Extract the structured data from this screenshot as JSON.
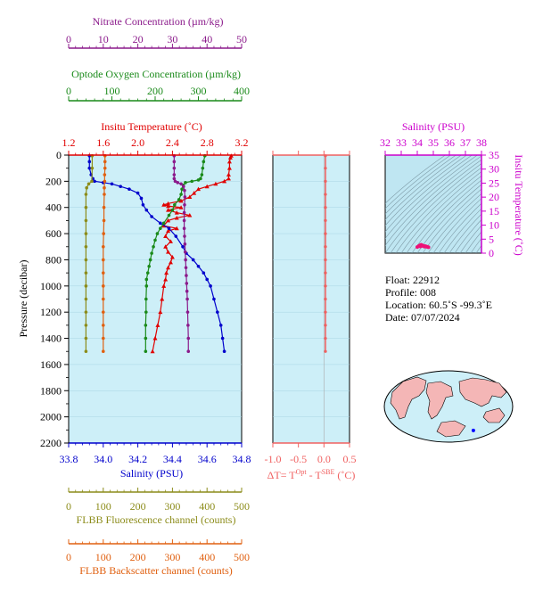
{
  "axes": {
    "nitrate": {
      "label": "Nitrate Concentration (µm/kg)",
      "color": "#8b1a8b",
      "range": [
        0,
        50
      ],
      "ticks": [
        "0",
        "10",
        "20",
        "30",
        "40",
        "50"
      ]
    },
    "oxygen": {
      "label": "Optode Oxygen Concentration (µm/kg)",
      "color": "#1a8a1a",
      "range": [
        0,
        400
      ],
      "ticks": [
        "0",
        "100",
        "200",
        "300",
        "400"
      ]
    },
    "temperature": {
      "label": "Insitu Temperature (˚C)",
      "color": "#e00000",
      "range": [
        1.2,
        3.2
      ],
      "ticks": [
        "1.2",
        "1.6",
        "2.0",
        "2.4",
        "2.8",
        "3.2"
      ]
    },
    "pressure": {
      "label": "Pressure (decibar)",
      "color": "#000000",
      "range": [
        0,
        2200
      ],
      "ticks": [
        "0",
        "200",
        "400",
        "600",
        "800",
        "1000",
        "1200",
        "1400",
        "1600",
        "1800",
        "2000",
        "2200"
      ]
    },
    "salinity": {
      "label": "Salinity (PSU)",
      "color": "#0000cc",
      "range": [
        33.8,
        34.8
      ],
      "ticks": [
        "33.8",
        "34.0",
        "34.2",
        "34.4",
        "34.6",
        "34.8"
      ]
    },
    "fluorescence": {
      "label": "FLBB Fluorescence channel (counts)",
      "color": "#8c8c1a",
      "range": [
        0,
        500
      ],
      "ticks": [
        "0",
        "100",
        "200",
        "300",
        "400",
        "500"
      ]
    },
    "backscatter": {
      "label": "FLBB Backscatter channel (counts)",
      "color": "#e06010",
      "range": [
        0,
        500
      ],
      "ticks": [
        "0",
        "100",
        "200",
        "300",
        "400",
        "500"
      ]
    },
    "delta_t": {
      "label_prefix": "ΔT= T",
      "sup1": "Opt",
      "label_mid": " - T",
      "sup2": "SBE",
      "label_suffix": " (˚C)",
      "color": "#f06060",
      "range": [
        -1.0,
        0.5
      ],
      "ticks": [
        "-1.0",
        "-0.5",
        "0.0",
        "0.5"
      ]
    },
    "ts_salinity": {
      "label": "Salinity (PSU)",
      "color": "#cc00cc",
      "range": [
        32,
        38
      ],
      "ticks": [
        "32",
        "33",
        "34",
        "35",
        "36",
        "37",
        "38"
      ]
    },
    "ts_temperature": {
      "label": "Insitu Temperature (˚C)",
      "color": "#cc00cc",
      "range": [
        0,
        35
      ],
      "ticks": [
        "0",
        "5",
        "10",
        "15",
        "20",
        "25",
        "30",
        "35"
      ]
    }
  },
  "info": {
    "float": "Float:  22912",
    "profile": "Profile:  008",
    "location": "Location:  60.5˚S  -99.3˚E",
    "date": "Date:  07/07/2024"
  },
  "colors": {
    "panel_bg": "#cdeff8",
    "ts_bg": "#bfe6f2"
  },
  "chart_data": {
    "type": "line",
    "y_axis": "pressure",
    "series": [
      {
        "axis": "temperature",
        "color": "#e00000",
        "marker": "triangle",
        "points": [
          [
            3.08,
            5
          ],
          [
            3.07,
            20
          ],
          [
            3.06,
            50
          ],
          [
            3.06,
            100
          ],
          [
            3.05,
            150
          ],
          [
            3.05,
            180
          ],
          [
            3.0,
            200
          ],
          [
            2.9,
            220
          ],
          [
            2.8,
            240
          ],
          [
            2.7,
            260
          ],
          [
            2.65,
            290
          ],
          [
            2.6,
            320
          ],
          [
            2.5,
            350
          ],
          [
            2.35,
            370
          ],
          [
            2.3,
            380
          ],
          [
            2.35,
            390
          ],
          [
            2.5,
            400
          ],
          [
            2.35,
            420
          ],
          [
            2.45,
            440
          ],
          [
            2.6,
            460
          ],
          [
            2.45,
            480
          ],
          [
            2.35,
            500
          ],
          [
            2.3,
            540
          ],
          [
            2.45,
            560
          ],
          [
            2.35,
            580
          ],
          [
            2.32,
            620
          ],
          [
            2.38,
            660
          ],
          [
            2.32,
            700
          ],
          [
            2.35,
            740
          ],
          [
            2.4,
            780
          ],
          [
            2.38,
            820
          ],
          [
            2.35,
            860
          ],
          [
            2.33,
            900
          ],
          [
            2.32,
            950
          ],
          [
            2.3,
            1000
          ],
          [
            2.28,
            1100
          ],
          [
            2.26,
            1200
          ],
          [
            2.23,
            1300
          ],
          [
            2.2,
            1400
          ],
          [
            2.17,
            1500
          ]
        ]
      },
      {
        "axis": "salinity",
        "color": "#0000cc",
        "marker": "circle",
        "points": [
          [
            33.92,
            5
          ],
          [
            33.92,
            50
          ],
          [
            33.92,
            100
          ],
          [
            33.93,
            150
          ],
          [
            33.94,
            180
          ],
          [
            33.95,
            200
          ],
          [
            34.0,
            210
          ],
          [
            34.05,
            220
          ],
          [
            34.1,
            240
          ],
          [
            34.15,
            260
          ],
          [
            34.2,
            290
          ],
          [
            34.22,
            330
          ],
          [
            34.23,
            380
          ],
          [
            34.25,
            420
          ],
          [
            34.28,
            470
          ],
          [
            34.33,
            520
          ],
          [
            34.38,
            560
          ],
          [
            34.42,
            620
          ],
          [
            34.46,
            700
          ],
          [
            34.48,
            750
          ],
          [
            34.52,
            800
          ],
          [
            34.55,
            850
          ],
          [
            34.58,
            900
          ],
          [
            34.6,
            950
          ],
          [
            34.62,
            1000
          ],
          [
            34.64,
            1100
          ],
          [
            34.66,
            1200
          ],
          [
            34.68,
            1300
          ],
          [
            34.69,
            1400
          ],
          [
            34.7,
            1500
          ]
        ]
      },
      {
        "axis": "oxygen",
        "color": "#1a8a1a",
        "marker": "circle",
        "points": [
          [
            315,
            5
          ],
          [
            312,
            50
          ],
          [
            310,
            100
          ],
          [
            308,
            150
          ],
          [
            305,
            180
          ],
          [
            300,
            190
          ],
          [
            285,
            200
          ],
          [
            270,
            210
          ],
          [
            265,
            230
          ],
          [
            262,
            260
          ],
          [
            260,
            300
          ],
          [
            255,
            340
          ],
          [
            245,
            380
          ],
          [
            240,
            420
          ],
          [
            232,
            460
          ],
          [
            220,
            520
          ],
          [
            212,
            560
          ],
          [
            205,
            600
          ],
          [
            200,
            650
          ],
          [
            196,
            700
          ],
          [
            192,
            750
          ],
          [
            189,
            800
          ],
          [
            186,
            850
          ],
          [
            183,
            900
          ],
          [
            180,
            950
          ],
          [
            180,
            1000
          ],
          [
            179,
            1100
          ],
          [
            179,
            1200
          ],
          [
            178,
            1300
          ],
          [
            178,
            1400
          ],
          [
            178,
            1500
          ]
        ]
      },
      {
        "axis": "nitrate",
        "color": "#8b1a8b",
        "marker": "circle",
        "points": [
          [
            30.5,
            5
          ],
          [
            30.5,
            50
          ],
          [
            30.5,
            100
          ],
          [
            30.5,
            150
          ],
          [
            30.5,
            180
          ],
          [
            30.8,
            200
          ],
          [
            31.5,
            210
          ],
          [
            32.5,
            220
          ],
          [
            33.2,
            240
          ],
          [
            33.5,
            270
          ],
          [
            33.6,
            320
          ],
          [
            33.5,
            380
          ],
          [
            33.4,
            440
          ],
          [
            33.4,
            500
          ],
          [
            33.4,
            560
          ],
          [
            33.5,
            620
          ],
          [
            33.6,
            680
          ],
          [
            33.7,
            740
          ],
          [
            33.8,
            800
          ],
          [
            33.9,
            860
          ],
          [
            34.0,
            920
          ],
          [
            34.1,
            980
          ],
          [
            34.2,
            1040
          ],
          [
            34.3,
            1100
          ],
          [
            34.4,
            1200
          ],
          [
            34.5,
            1300
          ],
          [
            34.6,
            1400
          ],
          [
            34.6,
            1500
          ]
        ]
      },
      {
        "axis": "fluorescence",
        "color": "#8c8c1a",
        "marker": "circle",
        "points": [
          [
            68,
            5
          ],
          [
            68,
            100
          ],
          [
            67,
            200
          ],
          [
            58,
            220
          ],
          [
            52,
            250
          ],
          [
            50,
            300
          ],
          [
            50,
            400
          ],
          [
            50,
            500
          ],
          [
            50,
            600
          ],
          [
            50,
            700
          ],
          [
            50,
            800
          ],
          [
            50,
            900
          ],
          [
            50,
            1000
          ],
          [
            50,
            1100
          ],
          [
            50,
            1200
          ],
          [
            50,
            1300
          ],
          [
            50,
            1400
          ],
          [
            50,
            1500
          ]
        ]
      },
      {
        "axis": "backscatter",
        "color": "#e06010",
        "marker": "circle",
        "points": [
          [
            105,
            5
          ],
          [
            105,
            50
          ],
          [
            105,
            100
          ],
          [
            104,
            150
          ],
          [
            104,
            200
          ],
          [
            103,
            250
          ],
          [
            103,
            300
          ],
          [
            102,
            400
          ],
          [
            102,
            500
          ],
          [
            101,
            600
          ],
          [
            100,
            700
          ],
          [
            100,
            800
          ],
          [
            100,
            900
          ],
          [
            100,
            1000
          ],
          [
            100,
            1100
          ],
          [
            100,
            1200
          ],
          [
            100,
            1300
          ],
          [
            100,
            1400
          ],
          [
            100,
            1500
          ]
        ]
      }
    ],
    "delta_t_series": {
      "color": "#f06060",
      "points": [
        [
          0.03,
          5
        ],
        [
          0.03,
          100
        ],
        [
          0.03,
          200
        ],
        [
          0.03,
          300
        ],
        [
          0.03,
          400
        ],
        [
          0.03,
          500
        ],
        [
          0.03,
          600
        ],
        [
          0.03,
          700
        ],
        [
          0.03,
          800
        ],
        [
          0.03,
          900
        ],
        [
          0.03,
          1000
        ],
        [
          0.03,
          1100
        ],
        [
          0.03,
          1200
        ],
        [
          0.03,
          1300
        ],
        [
          0.03,
          1400
        ],
        [
          0.03,
          1500
        ]
      ]
    },
    "ts_series": {
      "color": "#ee1177",
      "points": [
        [
          34.0,
          2.2
        ],
        [
          34.1,
          2.6
        ],
        [
          34.2,
          2.9
        ],
        [
          34.25,
          3.0
        ],
        [
          34.3,
          2.8
        ],
        [
          34.4,
          2.6
        ],
        [
          34.5,
          2.5
        ],
        [
          34.55,
          2.4
        ],
        [
          34.6,
          2.3
        ],
        [
          34.65,
          2.2
        ],
        [
          34.7,
          2.1
        ],
        [
          34.2,
          2.4
        ],
        [
          34.3,
          2.6
        ],
        [
          34.45,
          2.3
        ]
      ]
    },
    "map_point": {
      "lon": -99.3,
      "lat": -60.5
    }
  }
}
